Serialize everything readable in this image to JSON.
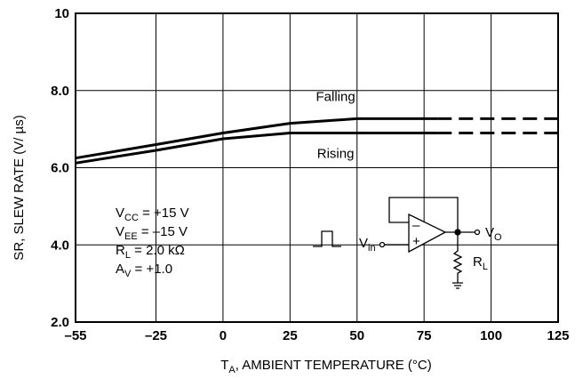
{
  "chart_data": {
    "type": "line",
    "ylabel": "SR, SLEW RATE (V/ µs)",
    "xlabel": "T_A, AMBIENT TEMPERATURE (°C)",
    "xlim": [
      -55,
      125
    ],
    "ylim": [
      2.0,
      10
    ],
    "x_ticks": [
      -55,
      -25,
      0,
      25,
      50,
      75,
      100,
      125
    ],
    "x_tick_labels": [
      "–55",
      "–25",
      "0",
      "25",
      "50",
      "75",
      "100",
      "125"
    ],
    "y_ticks": [
      2.0,
      4.0,
      6.0,
      8.0,
      10
    ],
    "y_tick_labels": [
      "2.0",
      "4.0",
      "6.0",
      "8.0",
      "10"
    ],
    "grid": true,
    "series": [
      {
        "name": "Falling",
        "x": [
          -55,
          -25,
          0,
          25,
          50,
          75,
          125
        ],
        "y": [
          6.25,
          6.6,
          6.9,
          7.15,
          7.27,
          7.27,
          7.27
        ],
        "dashed_from_x": 80
      },
      {
        "name": "Rising",
        "x": [
          -55,
          -25,
          0,
          25,
          50,
          75,
          125
        ],
        "y": [
          6.12,
          6.45,
          6.75,
          6.9,
          6.9,
          6.9,
          6.9
        ],
        "dashed_from_x": 80
      }
    ],
    "conditions": [
      {
        "sym": "V",
        "sub": "CC",
        "val": " =  +15 V"
      },
      {
        "sym": "V",
        "sub": "EE",
        "val": " = –15 V"
      },
      {
        "sym": "R",
        "sub": "L",
        "val": " = 2.0 kΩ"
      },
      {
        "sym": "A",
        "sub": "V",
        "val": " = +1.0"
      }
    ],
    "circuit_labels": {
      "vin": "V",
      "vin_sub": "in",
      "vout": "V",
      "vout_sub": "O",
      "rl": "R",
      "rl_sub": "L",
      "minus": "–",
      "plus": "+"
    }
  }
}
